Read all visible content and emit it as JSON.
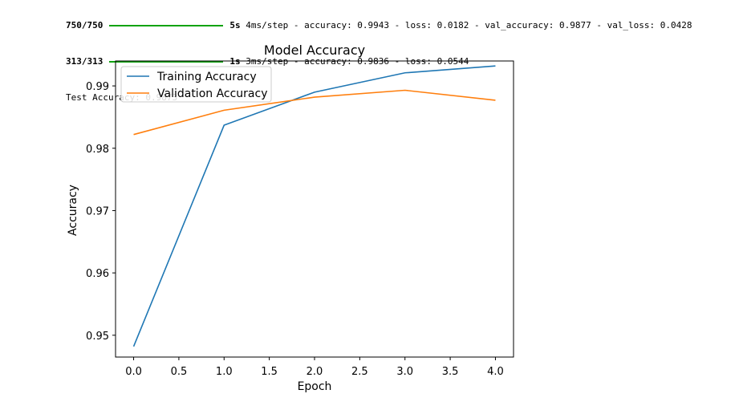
{
  "console": {
    "lines": [
      {
        "steps": "750/750",
        "time": "5s",
        "metrics": "4ms/step - accuracy: 0.9943 - loss: 0.0182 - val_accuracy: 0.9877 - val_loss: 0.0428"
      },
      {
        "steps": "313/313",
        "time": "1s",
        "metrics": "3ms/step - accuracy: 0.9836 - loss: 0.0544"
      }
    ],
    "test_accuracy": "Test Accuracy: 0.9873",
    "progress_color": "#0fa30f"
  },
  "chart_data": {
    "type": "line",
    "title": "Model Accuracy",
    "xlabel": "Epoch",
    "ylabel": "Accuracy",
    "xlim": [
      -0.2,
      4.2
    ],
    "ylim": [
      0.9465,
      0.994
    ],
    "xticks": [
      "0.0",
      "0.5",
      "1.0",
      "1.5",
      "2.0",
      "2.5",
      "3.0",
      "3.5",
      "4.0"
    ],
    "yticks": [
      "0.95",
      "0.96",
      "0.97",
      "0.98",
      "0.99"
    ],
    "grid": false,
    "legend_position": "upper-left",
    "x": [
      0,
      1,
      2,
      3,
      4
    ],
    "series": [
      {
        "name": "Training Accuracy",
        "color": "#1f77b4",
        "values": [
          0.9482,
          0.9837,
          0.989,
          0.9921,
          0.9932
        ]
      },
      {
        "name": "Validation Accuracy",
        "color": "#ff7f0e",
        "values": [
          0.9822,
          0.9861,
          0.9882,
          0.9893,
          0.9877
        ]
      }
    ]
  }
}
